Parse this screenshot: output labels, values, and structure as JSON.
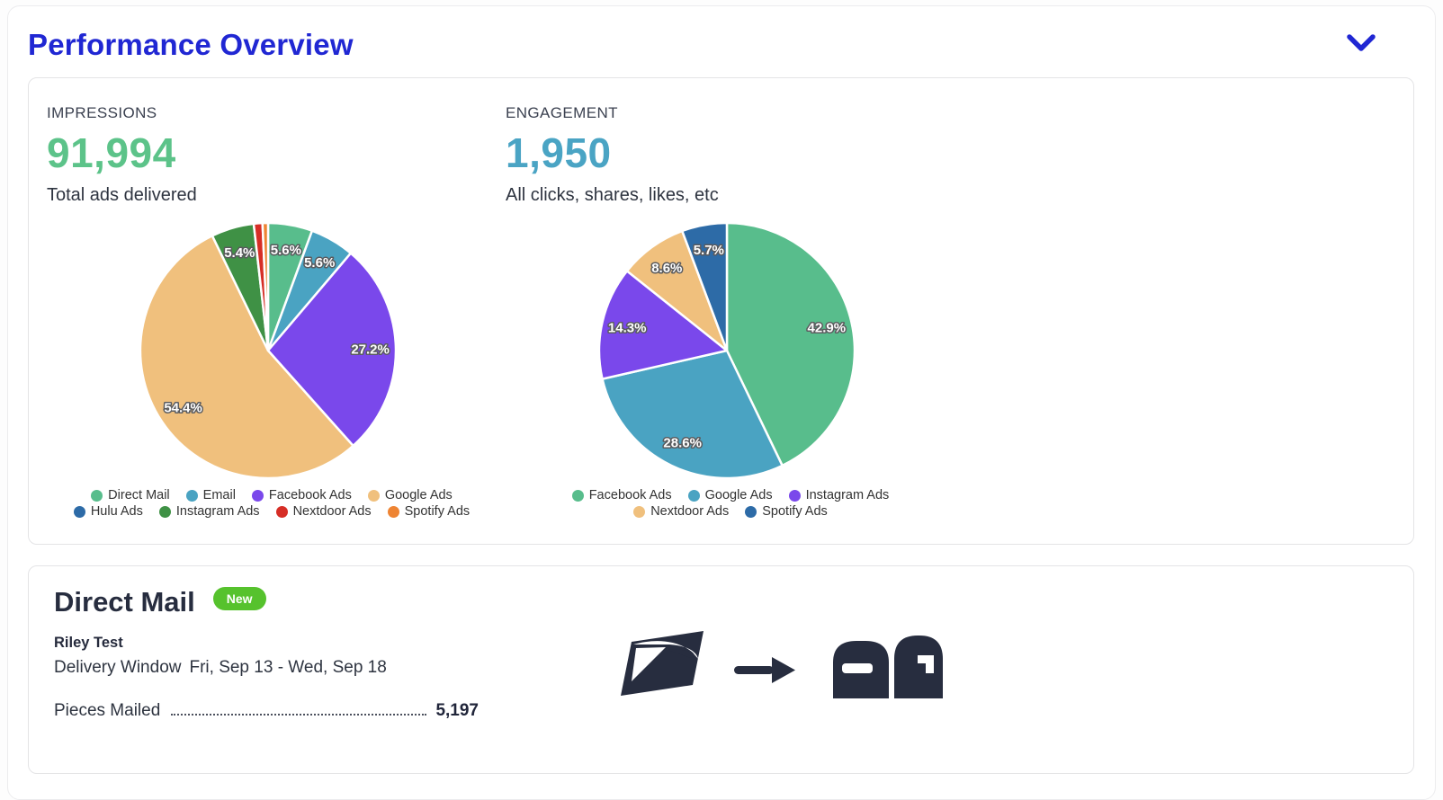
{
  "page": {
    "title": "Performance Overview",
    "accent_color": "#2027d3"
  },
  "impressions": {
    "label": "IMPRESSIONS",
    "value": "91,994",
    "value_color": "#5cc389",
    "subtitle": "Total ads delivered"
  },
  "engagement": {
    "label": "ENGAGEMENT",
    "value": "1,950",
    "value_color": "#4aa4c4",
    "subtitle": "All clicks, shares, likes, etc"
  },
  "chart_data": [
    {
      "type": "pie",
      "name": "impressions-by-channel",
      "labels": [
        "Direct Mail",
        "Email",
        "Facebook Ads",
        "Google Ads",
        "Hulu Ads",
        "Instagram Ads",
        "Nextdoor Ads",
        "Spotify Ads"
      ],
      "values": [
        5.6,
        5.6,
        27.2,
        54.4,
        0.0,
        5.4,
        1.1,
        0.7
      ],
      "display_labels": [
        "5.6%",
        "5.6%",
        "27.2%",
        "54.4%",
        "",
        "5.4%",
        "",
        ""
      ],
      "colors": [
        "#58bd8c",
        "#4aa3c2",
        "#7a48eb",
        "#f0c07d",
        "#2d6ba7",
        "#3f9145",
        "#d62e26",
        "#ee8433"
      ],
      "legend_position": "bottom",
      "legend_rows": [
        [
          "Direct Mail",
          "Email",
          "Facebook Ads",
          "Google Ads"
        ],
        [
          "Hulu Ads",
          "Instagram Ads",
          "Nextdoor Ads",
          "Spotify Ads"
        ]
      ],
      "start_angle_deg": 0,
      "direction": "clockwise"
    },
    {
      "type": "pie",
      "name": "engagement-by-channel",
      "labels": [
        "Facebook Ads",
        "Google Ads",
        "Instagram Ads",
        "Nextdoor Ads",
        "Spotify Ads"
      ],
      "values": [
        42.9,
        28.6,
        14.3,
        8.6,
        5.7
      ],
      "display_labels": [
        "42.9%",
        "28.6%",
        "14.3%",
        "8.6%",
        "5.7%"
      ],
      "colors": [
        "#58bd8c",
        "#4aa3c2",
        "#7a48eb",
        "#f0c07d",
        "#2d6ba7"
      ],
      "legend_position": "bottom",
      "legend_rows": [
        [
          "Facebook Ads",
          "Google Ads",
          "Instagram Ads"
        ],
        [
          "Nextdoor Ads",
          "Spotify Ads"
        ]
      ],
      "start_angle_deg": 0,
      "direction": "clockwise"
    }
  ],
  "direct_mail": {
    "title": "Direct Mail",
    "badge": "New",
    "badge_color": "#56c22d",
    "campaign_name": "Riley Test",
    "delivery_window_label": "Delivery Window",
    "delivery_window_value": "Fri, Sep 13 - Wed, Sep 18",
    "pieces_mailed_label": "Pieces Mailed",
    "pieces_mailed_value": "5,197",
    "icons": [
      "usps-logo-icon",
      "arrow-right-icon",
      "mailboxes-icon"
    ]
  }
}
